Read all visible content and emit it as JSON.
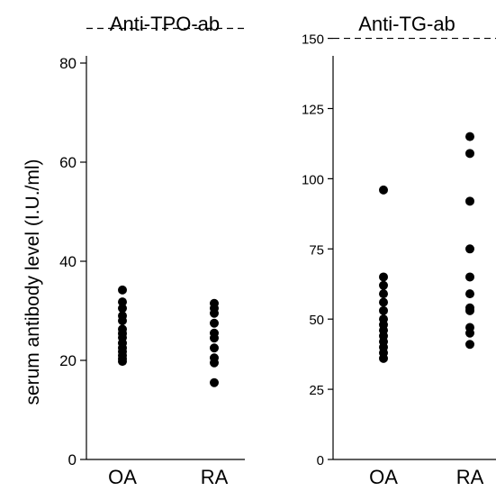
{
  "chart_data": [
    {
      "type": "scatter",
      "title": "Anti-TPO-ab",
      "ylabel": "serum antibody level (I.U./ml)",
      "ylim": [
        0,
        90
      ],
      "yticks": [
        0,
        20,
        40,
        60,
        80
      ],
      "reference_line": {
        "value": 87,
        "style": "dashed"
      },
      "categories": [
        "OA",
        "RA"
      ],
      "grid": false,
      "series": [
        {
          "category": "OA",
          "values": [
            34.2,
            31.8,
            30.5,
            29.0,
            28.0,
            26.3,
            25.4,
            24.6,
            23.5,
            22.5,
            21.8,
            21.0,
            20.3,
            19.8
          ]
        },
        {
          "category": "RA",
          "values": [
            31.5,
            30.5,
            29.5,
            27.5,
            25.5,
            24.5,
            22.5,
            20.5,
            19.5,
            15.5
          ]
        }
      ]
    },
    {
      "type": "scatter",
      "title": "Anti-TG-ab",
      "ylim": [
        0,
        155
      ],
      "yticks": [
        0,
        25,
        50,
        75,
        100,
        125,
        150
      ],
      "reference_line": {
        "value": 150,
        "style": "dashed"
      },
      "categories": [
        "OA",
        "RA"
      ],
      "grid": false,
      "series": [
        {
          "category": "OA",
          "values": [
            96,
            65,
            62,
            59,
            56,
            53,
            50,
            48,
            46,
            44,
            42,
            40,
            38,
            36
          ]
        },
        {
          "category": "RA",
          "values": [
            115,
            109,
            92,
            75,
            65,
            59,
            54,
            53,
            47,
            45,
            41
          ]
        }
      ]
    }
  ]
}
